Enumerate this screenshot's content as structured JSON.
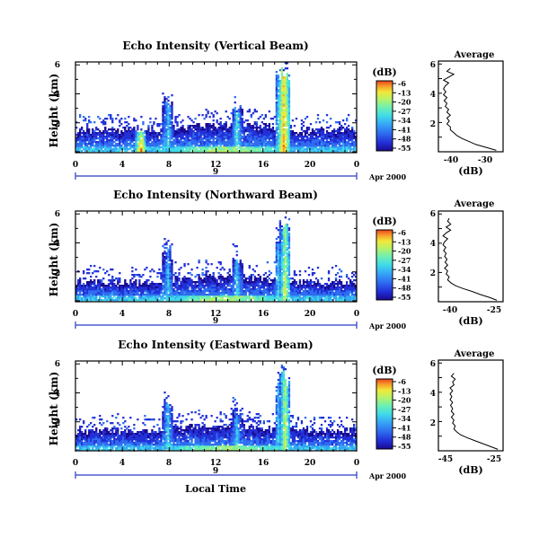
{
  "figure": {
    "x_axis_label": "Local Time",
    "date_label": "Apr 2000",
    "date_day": "9",
    "colorbar_unit": "(dB)",
    "colorbar_ticks": [
      "-6",
      "-13",
      "-20",
      "-27",
      "-34",
      "-41",
      "-48",
      "-55"
    ],
    "profile_title": "Average",
    "profile_xlabel": "(dB)"
  },
  "chart_data": [
    {
      "type": "heatmap",
      "title": "Echo Intensity (Vertical Beam)",
      "ylabel": "Height (km)",
      "xlabel": "Local Time",
      "x_ticks": [
        "0",
        "4",
        "8",
        "12",
        "16",
        "20",
        "0"
      ],
      "y_ticks": [
        "2",
        "4",
        "6"
      ],
      "xlim": [
        0,
        24
      ],
      "ylim": [
        0,
        6.2
      ],
      "colorbar": {
        "unit": "dB",
        "ticks": [
          -6,
          -13,
          -20,
          -27,
          -34,
          -41,
          -48,
          -55
        ],
        "range": [
          -55,
          -6
        ]
      },
      "features": [
        {
          "time_h": 5.6,
          "top_km": 0.7,
          "peak_db": -12
        },
        {
          "time_h": 7.9,
          "top_km": 4.1,
          "peak_db": -30
        },
        {
          "time_h": 13.8,
          "top_km": 3.3,
          "peak_db": -28
        },
        {
          "time_h": 17.6,
          "top_km": 6.2,
          "peak_db": -20
        },
        {
          "time_h": 17.8,
          "top_km": 6.2,
          "peak_db": -12
        }
      ],
      "boundary_layer_top_km": 1.5,
      "profile": {
        "title": "Average",
        "xlabel": "(dB)",
        "x_ticks": [
          "-40",
          "-30"
        ],
        "xlim": [
          -44,
          -25
        ],
        "ylim": [
          0,
          6.2
        ],
        "height_km": [
          0.1,
          0.3,
          0.5,
          0.7,
          0.9,
          1.1,
          1.3,
          1.5,
          1.7,
          1.9,
          2.1,
          2.3,
          2.5,
          2.7,
          2.9,
          3.1,
          3.3,
          3.5,
          3.7,
          3.9,
          4.1,
          4.3,
          4.5,
          4.7,
          4.9,
          5.1,
          5.3,
          5.5,
          5.7
        ],
        "db": [
          -27,
          -30,
          -33,
          -35,
          -37,
          -38.5,
          -39.5,
          -40.5,
          -40.5,
          -41.5,
          -40.8,
          -41.5,
          -40.5,
          -41.5,
          -41,
          -42,
          -41.5,
          -42.3,
          -41.5,
          -42.5,
          -41.8,
          -42.5,
          -42,
          -41,
          -42.5,
          -41,
          -39.5,
          -41.5,
          -40.5
        ]
      }
    },
    {
      "type": "heatmap",
      "title": "Echo Intensity (Northward Beam)",
      "ylabel": "Height (km)",
      "xlabel": "Local Time",
      "x_ticks": [
        "0",
        "4",
        "8",
        "12",
        "16",
        "20",
        "0"
      ],
      "y_ticks": [
        "2",
        "4",
        "6"
      ],
      "xlim": [
        0,
        24
      ],
      "ylim": [
        0,
        6.2
      ],
      "colorbar": {
        "unit": "dB",
        "ticks": [
          -6,
          -13,
          -20,
          -27,
          -34,
          -41,
          -48,
          -55
        ],
        "range": [
          -55,
          -6
        ]
      },
      "features": [
        {
          "time_h": 7.9,
          "top_km": 3.8,
          "peak_db": -32
        },
        {
          "time_h": 13.8,
          "top_km": 3.0,
          "peak_db": -30
        },
        {
          "time_h": 17.5,
          "top_km": 5.0,
          "peak_db": -24
        },
        {
          "time_h": 17.9,
          "top_km": 5.6,
          "peak_db": -20
        }
      ],
      "boundary_layer_top_km": 1.3,
      "profile": {
        "title": "Average",
        "xlabel": "(dB)",
        "x_ticks": [
          "-40",
          "-25"
        ],
        "xlim": [
          -44,
          -23
        ],
        "ylim": [
          0,
          6.2
        ],
        "height_km": [
          0.1,
          0.3,
          0.5,
          0.7,
          0.9,
          1.1,
          1.3,
          1.5,
          1.7,
          1.9,
          2.1,
          2.3,
          2.5,
          2.7,
          2.9,
          3.1,
          3.3,
          3.5,
          3.7,
          3.9,
          4.1,
          4.3,
          4.5,
          4.7,
          4.9,
          5.1,
          5.3,
          5.5,
          5.7
        ],
        "db": [
          -25,
          -27.5,
          -30.5,
          -33,
          -36,
          -38.5,
          -40,
          -41,
          -40.5,
          -41.5,
          -41,
          -42,
          -41,
          -41.8,
          -41.2,
          -42,
          -41.5,
          -42.3,
          -41.6,
          -42.5,
          -42,
          -41,
          -42.5,
          -41.5,
          -40,
          -41.5,
          -40,
          -41,
          -40.5
        ]
      }
    },
    {
      "type": "heatmap",
      "title": "Echo Intensity (Eastward Beam)",
      "ylabel": "Height (km)",
      "xlabel": "Local Time",
      "x_ticks": [
        "0",
        "4",
        "8",
        "12",
        "16",
        "20",
        "0"
      ],
      "y_ticks": [
        "2",
        "4",
        "6"
      ],
      "xlim": [
        0,
        24
      ],
      "ylim": [
        0,
        6.2
      ],
      "colorbar": {
        "unit": "dB",
        "ticks": [
          -6,
          -13,
          -20,
          -27,
          -34,
          -41,
          -48,
          -55
        ],
        "range": [
          -55,
          -6
        ]
      },
      "features": [
        {
          "time_h": 7.9,
          "top_km": 3.6,
          "peak_db": -30
        },
        {
          "time_h": 13.8,
          "top_km": 3.0,
          "peak_db": -30
        },
        {
          "time_h": 17.5,
          "top_km": 4.8,
          "peak_db": -24
        },
        {
          "time_h": 17.9,
          "top_km": 5.8,
          "peak_db": -20
        }
      ],
      "boundary_layer_top_km": 1.4,
      "profile": {
        "title": "Average",
        "xlabel": "(dB)",
        "x_ticks": [
          "-45",
          "-25"
        ],
        "xlim": [
          -48,
          -23
        ],
        "ylim": [
          0,
          6.2
        ],
        "height_km": [
          0.1,
          0.3,
          0.5,
          0.7,
          0.9,
          1.1,
          1.3,
          1.5,
          1.7,
          1.9,
          2.1,
          2.3,
          2.5,
          2.7,
          2.9,
          3.1,
          3.3,
          3.5,
          3.7,
          3.9,
          4.1,
          4.3,
          4.5,
          4.7,
          4.9,
          5.1,
          5.3
        ],
        "db": [
          -25,
          -28,
          -31,
          -34,
          -37,
          -39.5,
          -41,
          -42,
          -41.5,
          -42.5,
          -42,
          -43,
          -42,
          -43,
          -42.5,
          -43.3,
          -42.5,
          -43.5,
          -42.8,
          -43.5,
          -42.5,
          -43.5,
          -42,
          -42.5,
          -41.5,
          -43,
          -42
        ]
      }
    }
  ],
  "colors": {
    "colormap": [
      "#1a0a8f",
      "#2330d8",
      "#2f6cf0",
      "#36a6f6",
      "#3fdbe8",
      "#6ff0b2",
      "#b9f266",
      "#f2e83a",
      "#f6a12a",
      "#e8431f"
    ],
    "axis": "#000000",
    "date_bar": "#2b3bc8"
  }
}
